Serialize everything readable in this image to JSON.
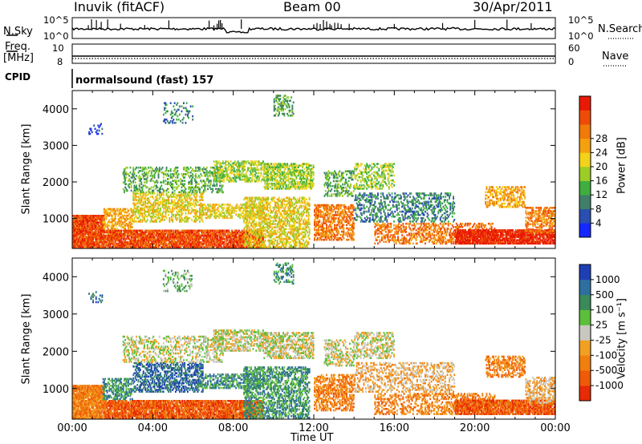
{
  "header": {
    "title": "Inuvik (fitACF)",
    "beam": "Beam 00",
    "date": "30/Apr/2011"
  },
  "top_panels": {
    "nsky_label": "N.Sky",
    "nsky_ticks": [
      "10^5",
      "10^0"
    ],
    "nsearch_label": "N.Search",
    "freq_label_1": "Freq.",
    "freq_label_2": "[MHz]",
    "freq_ticks": [
      "10",
      "8"
    ],
    "nave_label": "Nave",
    "nave_ticks": [
      "60",
      "0"
    ],
    "cpid_label": "CPID",
    "cpid_text": "normalsound (fast) 157"
  },
  "chart_data": [
    {
      "type": "heatmap",
      "title": "",
      "ylabel": "Slant Range [km]",
      "xlabel": "",
      "ylim": [
        180,
        4500
      ],
      "xlim": [
        "00:00",
        "24:00"
      ],
      "y_ticks": [
        1000,
        2000,
        3000,
        4000
      ],
      "colorbar": {
        "label": "Power [dB]",
        "ticks": [
          "4",
          "8",
          "12",
          "16",
          "20",
          "24",
          "28"
        ],
        "colors": [
          "#1428ff",
          "#2a4fb0",
          "#3f7f6a",
          "#3fae3f",
          "#9ccc26",
          "#f2d21a",
          "#f5a00f",
          "#f07a0a",
          "#ef4b08",
          "#e81a05"
        ]
      }
    },
    {
      "type": "heatmap",
      "title": "",
      "ylabel": "Slant Range [km]",
      "xlabel": "Time UT",
      "ylim": [
        180,
        4500
      ],
      "xlim": [
        "00:00",
        "24:00"
      ],
      "x_ticks": [
        "00:00",
        "04:00",
        "08:00",
        "12:00",
        "16:00",
        "20:00",
        "00:00"
      ],
      "y_ticks": [
        1000,
        2000,
        3000,
        4000
      ],
      "colorbar": {
        "label": "Velocity [m s⁻¹]",
        "ticks": [
          "1000",
          "500",
          "100",
          "25",
          "-25",
          "-100",
          "-500",
          "-1000"
        ],
        "colors": [
          "#1e3fb4",
          "#2f6fa0",
          "#3b8a5a",
          "#5cbf3a",
          "#c8c8c0",
          "#f2a024",
          "#f07f10",
          "#ef5a08",
          "#e82a05"
        ]
      }
    }
  ],
  "colors": {
    "background": "#ffffff",
    "axes": "#000000"
  }
}
